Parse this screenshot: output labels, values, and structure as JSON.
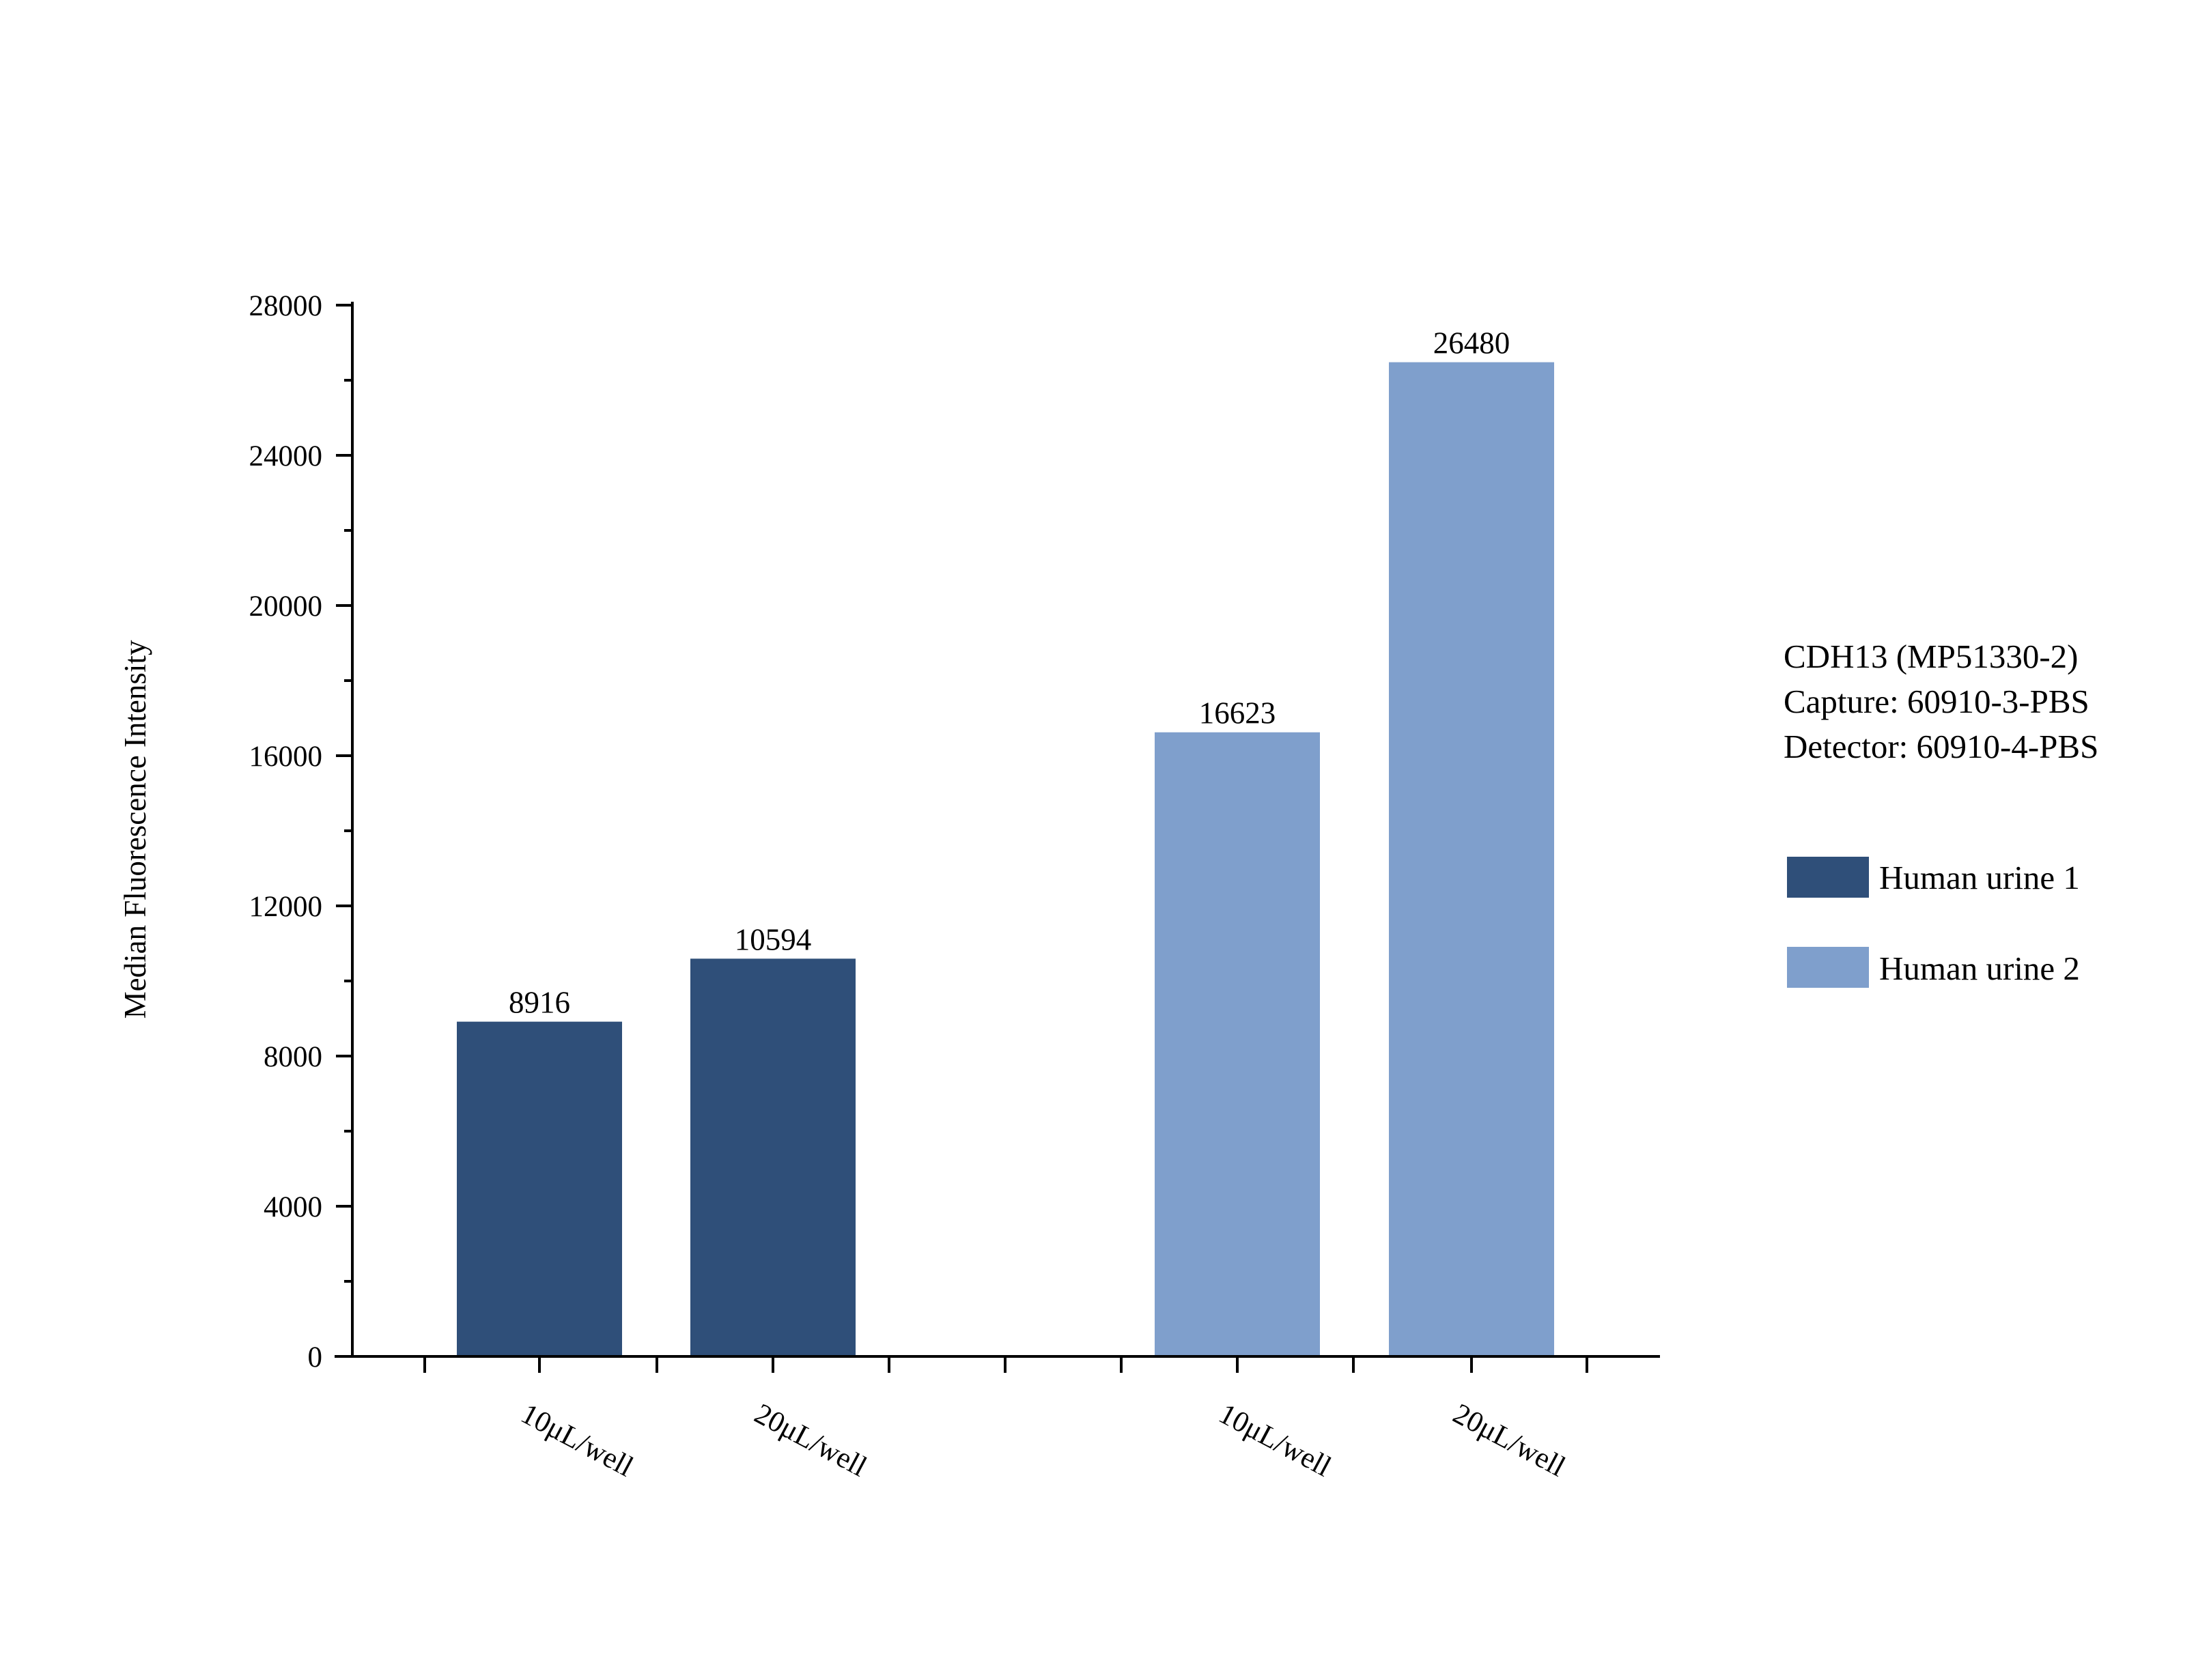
{
  "chart_data": {
    "type": "bar",
    "ylabel": "Median Fluorescence Intensity",
    "xlabel": "",
    "ylim": [
      0,
      28000
    ],
    "yticks": [
      0,
      4000,
      8000,
      12000,
      16000,
      20000,
      24000,
      28000
    ],
    "grid": false,
    "info_lines": [
      "CDH13 (MP51330-2)",
      "Capture: 60910-3-PBS",
      "Detector: 60910-4-PBS"
    ],
    "legend_position": "right",
    "series": [
      {
        "name": "Human urine 1",
        "color": "#2f4f79",
        "categories": [
          "10μL/well",
          "20μL/well"
        ],
        "values": [
          8916,
          10594
        ],
        "value_labels": [
          "8916",
          "10594"
        ]
      },
      {
        "name": "Human urine 2",
        "color": "#7f9fcc",
        "categories": [
          "10μL/well",
          "20μL/well"
        ],
        "values": [
          16623,
          26480
        ],
        "value_labels": [
          "16623",
          "26480"
        ]
      }
    ]
  }
}
